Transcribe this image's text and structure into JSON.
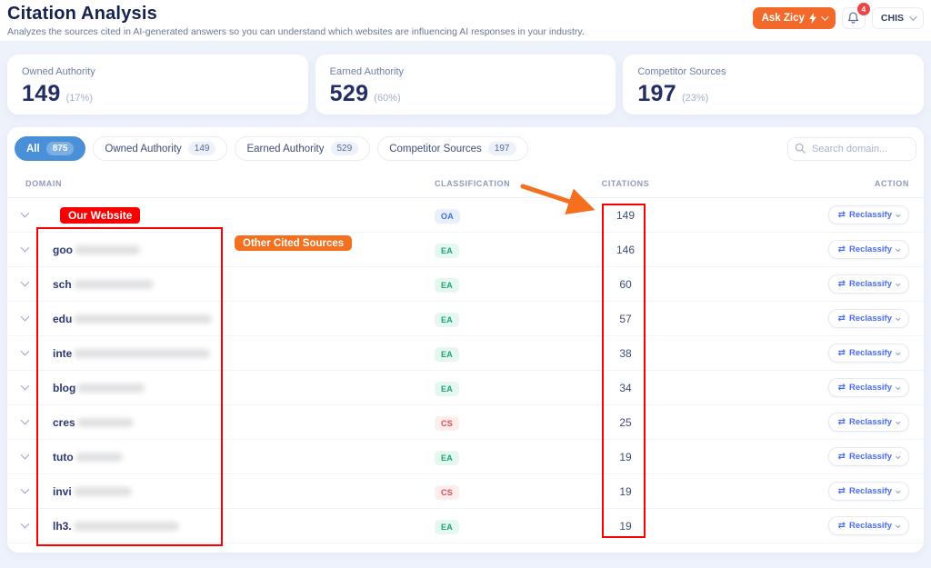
{
  "header": {
    "title": "Citation Analysis",
    "subtitle": "Analyzes the sources cited in AI-generated answers so you can understand which websites are influencing AI responses in your industry.",
    "ask_button_label": "Ask Zicy",
    "notification_count": "4",
    "account_label": "CHIS"
  },
  "stats": [
    {
      "label": "Owned Authority",
      "value": "149",
      "percent": "(17%)"
    },
    {
      "label": "Earned Authority",
      "value": "529",
      "percent": "(60%)"
    },
    {
      "label": "Competitor Sources",
      "value": "197",
      "percent": "(23%)"
    }
  ],
  "filters": {
    "tabs": [
      {
        "label": "All",
        "count": "875",
        "active": true
      },
      {
        "label": "Owned Authority",
        "count": "149",
        "active": false
      },
      {
        "label": "Earned Authority",
        "count": "529",
        "active": false
      },
      {
        "label": "Competitor Sources",
        "count": "197",
        "active": false
      }
    ],
    "search_placeholder": "Search domain..."
  },
  "table": {
    "columns": {
      "domain": "DOMAIN",
      "classification": "CLASSIFICATION",
      "citations": "CITATIONS",
      "action": "ACTION"
    },
    "action_label": "Reclassify",
    "rows": [
      {
        "domain_prefix": "",
        "blur_width": 0,
        "annotated": true,
        "classification": "OA",
        "citations": "149"
      },
      {
        "domain_prefix": "goo",
        "blur_width": 72,
        "annotated": false,
        "classification": "EA",
        "citations": "146"
      },
      {
        "domain_prefix": "sch",
        "blur_width": 88,
        "annotated": false,
        "classification": "EA",
        "citations": "60"
      },
      {
        "domain_prefix": "edu",
        "blur_width": 152,
        "annotated": false,
        "classification": "EA",
        "citations": "57"
      },
      {
        "domain_prefix": "inte",
        "blur_width": 150,
        "annotated": false,
        "classification": "EA",
        "citations": "38"
      },
      {
        "domain_prefix": "blog",
        "blur_width": 74,
        "annotated": false,
        "classification": "EA",
        "citations": "34"
      },
      {
        "domain_prefix": "cres",
        "blur_width": 62,
        "annotated": false,
        "classification": "CS",
        "citations": "25"
      },
      {
        "domain_prefix": "tuto",
        "blur_width": 52,
        "annotated": false,
        "classification": "EA",
        "citations": "19"
      },
      {
        "domain_prefix": "invi",
        "blur_width": 64,
        "annotated": false,
        "classification": "CS",
        "citations": "19"
      },
      {
        "domain_prefix": "lh3.",
        "blur_width": 116,
        "annotated": false,
        "classification": "EA",
        "citations": "19"
      }
    ],
    "classification_styles": {
      "OA": {
        "bg": "#e9f0fd",
        "text": "#3b6fe0"
      },
      "EA": {
        "bg": "#e6f7f0",
        "text": "#18a578"
      },
      "CS": {
        "bg": "#fdeded",
        "text": "#e5484d"
      }
    }
  },
  "annotations": {
    "our_website_label": "Our Website",
    "other_cited_label": "Other Cited Sources"
  },
  "colors": {
    "annotation_red": "#fa0000",
    "annotation_orange": "#f4701f",
    "brand_orange": "#f2692a",
    "active_tab_blue": "#4a90d9",
    "stat_navy": "#242e66",
    "page_background": "#eef2fb"
  }
}
